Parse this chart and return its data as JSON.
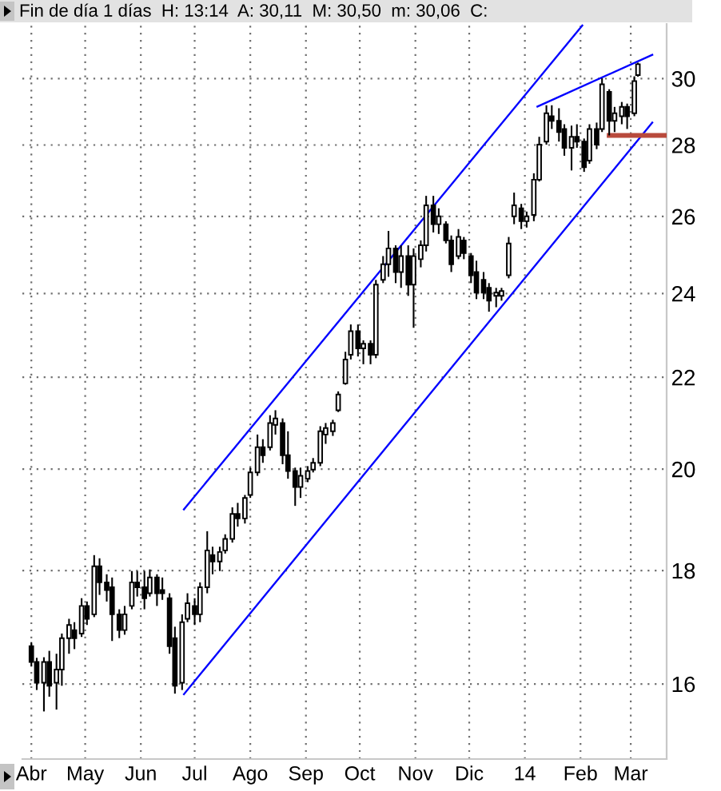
{
  "chart_data": {
    "type": "candlestick",
    "title": "Fin de día 1 días  H: 13:14  A: 30,11  M: 30,50  m: 30,06  C:",
    "log": true,
    "grid": true,
    "xlim": [
      "2013-03-27",
      "2014-03-21"
    ],
    "ylim": [
      14.8,
      31.75
    ],
    "xticks": [
      {
        "value": "2013-04-01",
        "label": "Abr"
      },
      {
        "value": "2013-05-01",
        "label": "May"
      },
      {
        "value": "2013-06-01",
        "label": "Jun"
      },
      {
        "value": "2013-07-01",
        "label": "Jul"
      },
      {
        "value": "2013-08-01",
        "label": "Ago"
      },
      {
        "value": "2013-09-01",
        "label": "Sep"
      },
      {
        "value": "2013-10-01",
        "label": "Oct"
      },
      {
        "value": "2013-11-01",
        "label": "Nov"
      },
      {
        "value": "2013-12-01",
        "label": "Dic"
      },
      {
        "value": "2014-01-01",
        "label": "14"
      },
      {
        "value": "2014-02-01",
        "label": "Feb"
      },
      {
        "value": "2014-03-01",
        "label": "Mar"
      }
    ],
    "yticks": [
      16,
      18,
      20,
      22,
      24,
      26,
      28,
      30
    ],
    "series": [
      {
        "x": [
          "2013-04-01",
          "2013-04-04",
          "2013-04-08",
          "2013-04-11",
          "2013-04-15",
          "2013-04-18",
          "2013-04-22",
          "2013-04-25",
          "2013-04-29",
          "2013-05-02",
          "2013-05-06",
          "2013-05-09",
          "2013-05-13",
          "2013-05-16",
          "2013-05-20",
          "2013-05-23",
          "2013-05-27",
          "2013-05-30",
          "2013-06-03",
          "2013-06-06",
          "2013-06-10",
          "2013-06-13",
          "2013-06-17",
          "2013-06-20",
          "2013-06-24",
          "2013-06-27",
          "2013-07-01",
          "2013-07-04",
          "2013-07-08",
          "2013-07-11",
          "2013-07-15",
          "2013-07-18",
          "2013-07-22",
          "2013-07-25",
          "2013-07-29",
          "2013-08-01",
          "2013-08-05",
          "2013-08-08",
          "2013-08-12",
          "2013-08-15",
          "2013-08-19",
          "2013-08-22",
          "2013-08-26",
          "2013-08-29",
          "2013-09-02",
          "2013-09-05",
          "2013-09-09",
          "2013-09-12",
          "2013-09-16",
          "2013-09-19",
          "2013-09-23",
          "2013-09-26",
          "2013-09-30",
          "2013-10-03",
          "2013-10-07",
          "2013-10-10",
          "2013-10-14",
          "2013-10-17",
          "2013-10-21",
          "2013-10-24",
          "2013-10-28",
          "2013-10-31",
          "2013-11-04",
          "2013-11-07",
          "2013-11-11",
          "2013-11-14",
          "2013-11-18",
          "2013-11-21",
          "2013-11-25",
          "2013-11-28",
          "2013-12-02",
          "2013-12-05",
          "2013-12-09",
          "2013-12-12",
          "2013-12-16",
          "2013-12-19",
          "2013-12-23",
          "2013-12-26",
          "2013-12-30",
          "2014-01-02",
          "2014-01-06",
          "2014-01-09",
          "2014-01-13",
          "2014-01-16",
          "2014-01-20",
          "2014-01-23",
          "2014-01-27",
          "2014-01-30",
          "2014-02-03",
          "2014-02-06",
          "2014-02-10",
          "2014-02-13",
          "2014-02-17",
          "2014-02-20",
          "2014-02-24",
          "2014-02-27",
          "2014-03-03",
          "2014-03-05"
        ],
        "ohlc": [
          [
            16.64,
            16.71,
            16.3,
            16.37
          ],
          [
            16.37,
            16.44,
            15.9,
            16.02
          ],
          [
            16.02,
            16.45,
            15.55,
            16.37
          ],
          [
            16.37,
            16.56,
            15.79,
            15.97
          ],
          [
            16.02,
            16.51,
            15.58,
            16.24
          ],
          [
            16.24,
            16.86,
            15.97,
            16.78
          ],
          [
            16.78,
            17.12,
            16.51,
            17.01
          ],
          [
            16.92,
            17.06,
            16.59,
            16.78
          ],
          [
            16.86,
            17.49,
            16.8,
            17.35
          ],
          [
            17.35,
            17.43,
            17.01,
            17.12
          ],
          [
            17.2,
            18.29,
            17.15,
            18.08
          ],
          [
            18.08,
            18.23,
            17.55,
            17.78
          ],
          [
            17.78,
            17.93,
            17.43,
            17.64
          ],
          [
            17.69,
            17.87,
            16.73,
            17.2
          ],
          [
            17.2,
            17.29,
            16.78,
            16.92
          ],
          [
            16.92,
            17.35,
            16.84,
            17.2
          ],
          [
            17.35,
            17.99,
            17.29,
            17.78
          ],
          [
            17.78,
            17.99,
            17.52,
            17.69
          ],
          [
            17.69,
            17.99,
            17.29,
            17.49
          ],
          [
            17.58,
            18.02,
            17.52,
            17.87
          ],
          [
            17.87,
            17.93,
            17.35,
            17.58
          ],
          [
            17.64,
            17.87,
            17.46,
            17.58
          ],
          [
            17.49,
            17.58,
            16.51,
            16.64
          ],
          [
            16.78,
            16.98,
            15.84,
            15.97
          ],
          [
            16.02,
            17.2,
            15.9,
            17.06
          ],
          [
            17.12,
            17.58,
            17.06,
            17.4
          ],
          [
            17.35,
            17.49,
            17.01,
            17.2
          ],
          [
            17.2,
            17.78,
            17.06,
            17.69
          ],
          [
            17.69,
            18.75,
            17.58,
            18.38
          ],
          [
            18.29,
            18.45,
            17.93,
            18.17
          ],
          [
            18.17,
            18.45,
            17.99,
            18.35
          ],
          [
            18.38,
            18.69,
            18.32,
            18.6
          ],
          [
            18.6,
            19.22,
            18.53,
            19.09
          ],
          [
            19.09,
            19.31,
            18.84,
            19.0
          ],
          [
            19.0,
            19.47,
            18.9,
            19.41
          ],
          [
            19.47,
            20.03,
            19.41,
            19.93
          ],
          [
            19.93,
            20.73,
            19.86,
            20.46
          ],
          [
            20.46,
            20.63,
            20.13,
            20.29
          ],
          [
            20.46,
            21.15,
            20.39,
            20.98
          ],
          [
            20.94,
            21.26,
            20.73,
            21.08
          ],
          [
            20.98,
            21.08,
            20.1,
            20.29
          ],
          [
            20.29,
            20.8,
            19.8,
            19.96
          ],
          [
            19.96,
            20.03,
            19.25,
            19.63
          ],
          [
            19.63,
            20.03,
            19.41,
            19.86
          ],
          [
            19.8,
            20.06,
            19.73,
            19.96
          ],
          [
            19.99,
            20.23,
            19.93,
            20.13
          ],
          [
            20.13,
            20.91,
            20.06,
            20.8
          ],
          [
            20.73,
            20.98,
            20.53,
            20.87
          ],
          [
            20.8,
            21.05,
            20.7,
            20.98
          ],
          [
            21.26,
            21.68,
            21.22,
            21.61
          ],
          [
            21.86,
            22.59,
            21.83,
            22.41
          ],
          [
            22.52,
            23.24,
            22.41,
            23.08
          ],
          [
            23.08,
            23.24,
            22.48,
            22.67
          ],
          [
            22.67,
            22.86,
            22.3,
            22.78
          ],
          [
            22.78,
            22.86,
            22.3,
            22.52
          ],
          [
            22.52,
            24.34,
            22.44,
            24.22
          ],
          [
            24.34,
            24.95,
            24.26,
            24.74
          ],
          [
            24.74,
            25.61,
            24.42,
            25.15
          ],
          [
            25.15,
            25.23,
            24.26,
            24.54
          ],
          [
            24.54,
            25.23,
            24.14,
            24.95
          ],
          [
            24.95,
            25.23,
            23.94,
            24.22
          ],
          [
            24.22,
            25.15,
            23.16,
            24.95
          ],
          [
            24.87,
            25.36,
            24.66,
            25.23
          ],
          [
            25.23,
            26.56,
            25.07,
            26.3
          ],
          [
            26.3,
            26.56,
            25.57,
            25.79
          ],
          [
            25.79,
            26.22,
            25.53,
            26.0
          ],
          [
            25.79,
            25.87,
            25.28,
            25.36
          ],
          [
            25.36,
            25.49,
            24.54,
            24.74
          ],
          [
            24.95,
            25.66,
            24.87,
            25.45
          ],
          [
            25.36,
            25.45,
            24.87,
            25.03
          ],
          [
            24.95,
            25.03,
            24.26,
            24.46
          ],
          [
            24.54,
            24.83,
            23.86,
            24.02
          ],
          [
            24.34,
            24.54,
            23.86,
            24.02
          ],
          [
            24.14,
            24.26,
            23.55,
            23.82
          ],
          [
            23.94,
            24.14,
            23.66,
            24.02
          ],
          [
            23.94,
            24.14,
            23.82,
            24.06
          ],
          [
            24.46,
            25.45,
            24.38,
            25.28
          ],
          [
            26.0,
            26.65,
            25.79,
            26.3
          ],
          [
            26.22,
            26.34,
            25.66,
            25.87
          ],
          [
            25.87,
            26.13,
            25.7,
            26.0
          ],
          [
            26.04,
            27.19,
            25.87,
            27.01
          ],
          [
            27.01,
            28.24,
            26.96,
            28.01
          ],
          [
            28.1,
            29.18,
            28.01,
            28.94
          ],
          [
            28.85,
            29.18,
            28.47,
            28.71
          ],
          [
            28.71,
            29.09,
            28.1,
            28.38
          ],
          [
            28.47,
            28.61,
            27.69,
            27.92
          ],
          [
            27.92,
            28.57,
            27.27,
            28.24
          ],
          [
            28.24,
            28.61,
            27.92,
            28.1
          ],
          [
            28.1,
            28.19,
            27.23,
            27.36
          ],
          [
            27.55,
            28.61,
            27.46,
            28.47
          ],
          [
            28.47,
            28.66,
            27.88,
            28.01
          ],
          [
            28.47,
            30.01,
            28.38,
            29.82
          ],
          [
            29.59,
            29.67,
            28.28,
            28.71
          ],
          [
            28.71,
            29.13,
            28.38,
            28.94
          ],
          [
            28.85,
            29.28,
            28.61,
            29.13
          ],
          [
            29.13,
            29.23,
            28.47,
            28.85
          ],
          [
            28.94,
            30.07,
            28.85,
            29.92
          ],
          [
            30.11,
            30.5,
            30.06,
            30.45
          ]
        ]
      },
      {
        "type": "line",
        "color": "#0000ff",
        "x": [
          "2013-06-25",
          "2014-02-02"
        ],
        "values": [
          19.18,
          31.7
        ]
      },
      {
        "type": "line",
        "color": "#0000ff",
        "x": [
          "2013-06-25",
          "2014-03-13"
        ],
        "values": [
          15.83,
          28.66
        ]
      },
      {
        "type": "line",
        "color": "#0000ff",
        "x": [
          "2014-01-08",
          "2014-03-13"
        ],
        "values": [
          29.14,
          30.75
        ]
      },
      {
        "type": "line",
        "color": "#b84a3c",
        "x": [
          "2014-02-17",
          "2014-03-20"
        ],
        "values": [
          28.28,
          28.28
        ]
      }
    ]
  }
}
